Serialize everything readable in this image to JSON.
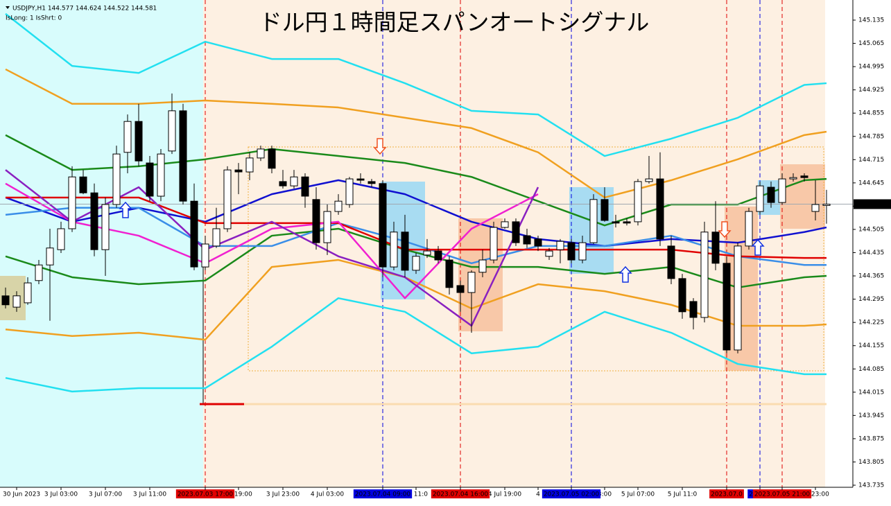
{
  "header": {
    "symbol_line": "USDJPY,H1  144.577 144.624 144.522 144.581",
    "status": "IsLong: 1 IsShrt: 0"
  },
  "chart_data": {
    "type": "candlestick",
    "title": "ドル円１時間足スパンオートシグナル",
    "categories": [
      null,
      "30 Jun 2023",
      null,
      null,
      null,
      "3 Jul 03:00",
      null,
      null,
      null,
      "3 Jul 07:00",
      null,
      null,
      null,
      "3 Jul 11:00",
      null,
      null,
      null,
      null,
      "2023.07.03 17:00",
      null,
      null,
      "Jul 19:00",
      null,
      null,
      null,
      "3 Jul 23:00",
      null,
      null,
      null,
      "4 Jul 03:00",
      null,
      null,
      null,
      null,
      "2023.07.04 09:00",
      null,
      null,
      "Jul 11:0",
      null,
      null,
      null,
      "2023.07.04 16:00",
      null,
      null,
      null,
      "4 Jul 19:00",
      null,
      null,
      "4",
      null,
      null,
      "2023.07.05 02:00",
      null,
      null,
      "3:00",
      null,
      null,
      "5 Jul 07:00",
      null,
      null,
      null,
      "5 Jul 11:0",
      null,
      null,
      null,
      "2023.07.0",
      null,
      null,
      "2023.0",
      null,
      "2023.07.05 21:00",
      null,
      null,
      "Jul 23:00",
      null
    ],
    "open": [
      144.305,
      144.271,
      144.284,
      144.351,
      144.398,
      144.444,
      144.507,
      144.663,
      144.615,
      144.444,
      144.58,
      144.737,
      144.83,
      144.705,
      144.605,
      144.741,
      144.862,
      144.59,
      144.392,
      144.455,
      144.507,
      144.684,
      144.678,
      144.72,
      144.747,
      144.649,
      144.636,
      144.663,
      144.595,
      144.465,
      144.559,
      144.58,
      144.657,
      144.649,
      144.643,
      144.392,
      144.497,
      144.382,
      144.428,
      144.44,
      144.413,
      144.336,
      144.315,
      144.376,
      144.413,
      144.511,
      144.528,
      144.486,
      144.476,
      144.424,
      144.444,
      144.465,
      144.413,
      144.465,
      144.595,
      144.528,
      144.528,
      144.528,
      144.649,
      144.657,
      144.455,
      144.357,
      144.288,
      144.24,
      144.497,
      144.403,
      144.142,
      144.455,
      144.559,
      144.632,
      144.586,
      144.657,
      144.666,
      144.559,
      144.577
    ],
    "high": [
      144.33,
      144.319,
      144.361,
      144.413,
      144.507,
      144.528,
      144.695,
      144.684,
      144.643,
      144.601,
      144.757,
      144.851,
      144.883,
      144.726,
      144.747,
      144.914,
      144.883,
      144.643,
      144.486,
      144.57,
      144.695,
      144.705,
      144.737,
      144.757,
      144.757,
      144.684,
      144.684,
      144.674,
      144.632,
      144.58,
      144.611,
      144.663,
      144.674,
      144.657,
      144.653,
      144.528,
      144.549,
      144.434,
      144.476,
      144.455,
      144.424,
      144.351,
      144.382,
      144.444,
      144.528,
      144.538,
      144.538,
      144.507,
      144.486,
      144.449,
      144.476,
      144.476,
      144.486,
      144.611,
      144.632,
      144.549,
      144.538,
      144.657,
      144.726,
      144.737,
      144.486,
      144.371,
      144.298,
      144.528,
      144.59,
      144.424,
      144.465,
      144.57,
      144.649,
      144.649,
      144.674,
      144.674,
      144.674,
      144.653,
      144.624
    ],
    "low": [
      144.267,
      144.257,
      144.278,
      144.34,
      144.23,
      144.434,
      144.497,
      144.611,
      144.424,
      144.365,
      144.57,
      144.674,
      144.695,
      144.59,
      144.59,
      144.732,
      144.58,
      144.382,
      144.382,
      144.449,
      144.497,
      144.611,
      144.653,
      144.711,
      144.674,
      144.628,
      144.628,
      144.57,
      144.444,
      144.428,
      144.549,
      144.57,
      144.643,
      144.632,
      144.361,
      144.382,
      144.361,
      144.371,
      144.419,
      144.403,
      144.309,
      144.257,
      144.194,
      144.361,
      144.403,
      144.507,
      144.455,
      144.449,
      144.44,
      144.413,
      144.403,
      144.403,
      144.403,
      144.461,
      144.528,
      144.511,
      144.517,
      144.517,
      144.643,
      144.455,
      144.34,
      144.236,
      144.204,
      144.225,
      144.382,
      144.132,
      144.132,
      144.444,
      144.549,
      144.57,
      144.58,
      144.649,
      144.649,
      144.532,
      144.522
    ],
    "close": [
      144.278,
      144.305,
      144.344,
      144.398,
      144.449,
      144.507,
      144.663,
      144.615,
      144.444,
      144.58,
      144.732,
      144.83,
      144.711,
      144.605,
      144.732,
      144.862,
      144.59,
      144.392,
      144.461,
      144.507,
      144.684,
      144.678,
      144.72,
      144.747,
      144.689,
      144.636,
      144.663,
      144.605,
      144.465,
      144.559,
      144.59,
      144.657,
      144.653,
      144.643,
      144.392,
      144.497,
      144.382,
      144.424,
      144.44,
      144.413,
      144.33,
      144.315,
      144.376,
      144.413,
      144.511,
      144.528,
      144.465,
      144.461,
      144.455,
      144.44,
      144.469,
      144.413,
      144.465,
      144.595,
      144.532,
      144.524,
      144.524,
      144.649,
      144.657,
      144.476,
      144.357,
      144.257,
      144.24,
      144.497,
      144.403,
      144.142,
      144.455,
      144.559,
      144.636,
      144.586,
      144.657,
      144.661,
      144.661,
      144.58,
      144.581
    ],
    "up_color": "#ffffff",
    "down_color": "#000000",
    "ylim": [
      143.735,
      145.135
    ],
    "yticks": [
      145.135,
      145.065,
      144.995,
      144.925,
      144.855,
      144.785,
      144.715,
      144.645,
      144.575,
      144.505,
      144.435,
      144.365,
      144.295,
      144.225,
      144.155,
      144.085,
      144.015,
      143.945,
      143.875,
      143.805,
      143.735
    ],
    "current_price": 144.581,
    "lines": [
      {
        "color": "#22e0f0",
        "x": [
          0,
          6,
          12,
          18,
          24,
          30,
          36,
          42,
          48,
          54,
          60,
          66,
          72,
          74
        ],
        "values": [
          145.154,
          144.997,
          144.976,
          145.07,
          145.018,
          145.018,
          144.945,
          144.862,
          144.851,
          144.726,
          144.778,
          144.841,
          144.94,
          144.945
        ]
      },
      {
        "color": "#22e0f0",
        "x": [
          0,
          6,
          12,
          18,
          24,
          30,
          36,
          42,
          48,
          54,
          60,
          66,
          72,
          74
        ],
        "values": [
          144.058,
          144.017,
          144.027,
          144.027,
          144.152,
          144.298,
          144.257,
          144.132,
          144.152,
          144.257,
          144.194,
          144.1,
          144.069,
          144.069
        ]
      },
      {
        "color": "#f0a020",
        "x": [
          0,
          6,
          12,
          18,
          24,
          30,
          36,
          42,
          48,
          54,
          60,
          66,
          72,
          74
        ],
        "values": [
          144.987,
          144.883,
          144.883,
          144.893,
          144.883,
          144.872,
          144.841,
          144.81,
          144.737,
          144.601,
          144.653,
          144.716,
          144.789,
          144.799
        ]
      },
      {
        "color": "#f0a020",
        "x": [
          0,
          6,
          12,
          18,
          24,
          30,
          36,
          42,
          48,
          54,
          60,
          66,
          72,
          74
        ],
        "values": [
          144.204,
          144.184,
          144.194,
          144.173,
          144.392,
          144.413,
          144.361,
          144.267,
          144.34,
          144.319,
          144.278,
          144.215,
          144.215,
          144.219
        ]
      },
      {
        "color": "#1a8a1a",
        "x": [
          0,
          6,
          12,
          18,
          24,
          30,
          36,
          42,
          48,
          54,
          60,
          66,
          72,
          74
        ],
        "values": [
          144.789,
          144.684,
          144.695,
          144.716,
          144.747,
          144.726,
          144.705,
          144.663,
          144.59,
          144.517,
          144.58,
          144.58,
          144.653,
          144.657
        ]
      },
      {
        "color": "#1a8a1a",
        "x": [
          0,
          6,
          12,
          18,
          24,
          30,
          36,
          42,
          48,
          54,
          60,
          66,
          72,
          74
        ],
        "values": [
          144.424,
          144.361,
          144.34,
          144.351,
          144.486,
          144.507,
          144.444,
          144.392,
          144.392,
          144.371,
          144.392,
          144.33,
          144.361,
          144.365
        ]
      },
      {
        "color": "#1010d0",
        "x": [
          0,
          6,
          12,
          18,
          24,
          30,
          36,
          42,
          48,
          54,
          60,
          66,
          72,
          74
        ],
        "values": [
          144.601,
          144.528,
          144.57,
          144.528,
          144.611,
          144.653,
          144.611,
          144.528,
          144.476,
          144.455,
          144.476,
          144.465,
          144.497,
          144.511
        ]
      },
      {
        "color": "#3a8ee8",
        "x": [
          0,
          6,
          12,
          18,
          24,
          30,
          36,
          42,
          48,
          54,
          60,
          66,
          72,
          74
        ],
        "values": [
          144.549,
          144.57,
          144.57,
          144.455,
          144.455,
          144.524,
          144.469,
          144.403,
          144.455,
          144.455,
          144.486,
          144.424,
          144.398,
          144.398
        ]
      },
      {
        "color": "#e00000",
        "x": [
          0,
          6,
          12,
          18,
          24,
          30,
          36,
          42,
          48,
          54,
          60,
          66,
          72,
          74
        ],
        "values": [
          144.601,
          144.601,
          144.601,
          144.524,
          144.524,
          144.524,
          144.444,
          144.444,
          144.444,
          144.444,
          144.444,
          144.424,
          144.419,
          144.419
        ]
      },
      {
        "color": "#f020d0",
        "x": [
          0,
          6,
          12,
          18,
          24,
          30,
          36,
          42,
          48,
          54,
          60,
          66,
          72,
          74
        ],
        "values": [
          144.643,
          144.528,
          144.486,
          144.403,
          144.507,
          144.528,
          144.298,
          144.507,
          144.611,
          null,
          null,
          null,
          null,
          null
        ]
      },
      {
        "color": "#8a20c0",
        "x": [
          0,
          6,
          12,
          18,
          24,
          30,
          36,
          42,
          48,
          54,
          60,
          66,
          72,
          74
        ],
        "values": [
          144.684,
          144.528,
          144.632,
          144.444,
          144.528,
          144.424,
          144.361,
          144.215,
          144.632,
          null,
          null,
          null,
          null,
          null
        ]
      }
    ],
    "signal_lines": [
      {
        "index": 18,
        "color": "#e00000"
      },
      {
        "index": 34,
        "color": "#0000e0"
      },
      {
        "index": 41,
        "color": "#e00000"
      },
      {
        "index": 51,
        "color": "#0000e0"
      },
      {
        "index": 65,
        "color": "#e00000"
      },
      {
        "index": 68,
        "color": "#0000e0"
      },
      {
        "index": 70,
        "color": "#e00000"
      }
    ],
    "levels": [
      {
        "value": 143.979,
        "start": 18,
        "end": 22,
        "color": "#e00000"
      },
      {
        "value": 143.979,
        "start": 22,
        "end": 74,
        "color": "#fadcb0"
      }
    ]
  }
}
